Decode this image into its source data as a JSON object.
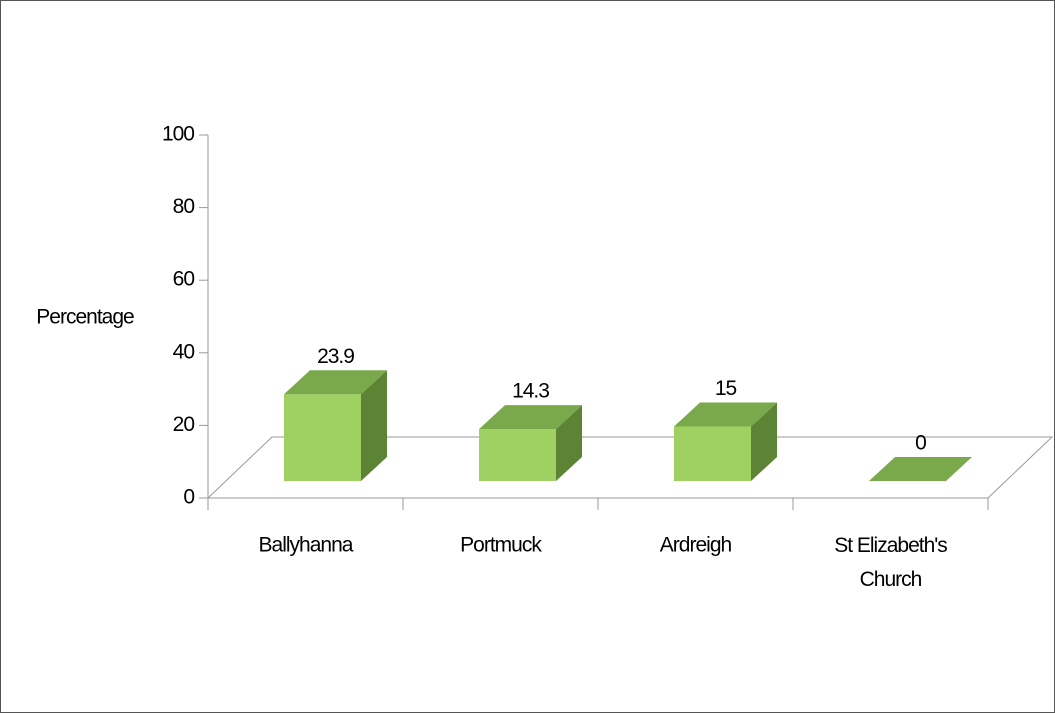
{
  "chart_data": {
    "type": "bar3d",
    "y_label": "Percentage",
    "categories": [
      "Ballyhanna",
      "Portmuck",
      "Ardreigh",
      "St Elizabeth's Church"
    ],
    "values": [
      23.9,
      14.3,
      15,
      0
    ],
    "color": "#9fd062",
    "ylim": [
      0,
      100
    ],
    "yticks": [
      0,
      20,
      40,
      60,
      80,
      100
    ]
  }
}
